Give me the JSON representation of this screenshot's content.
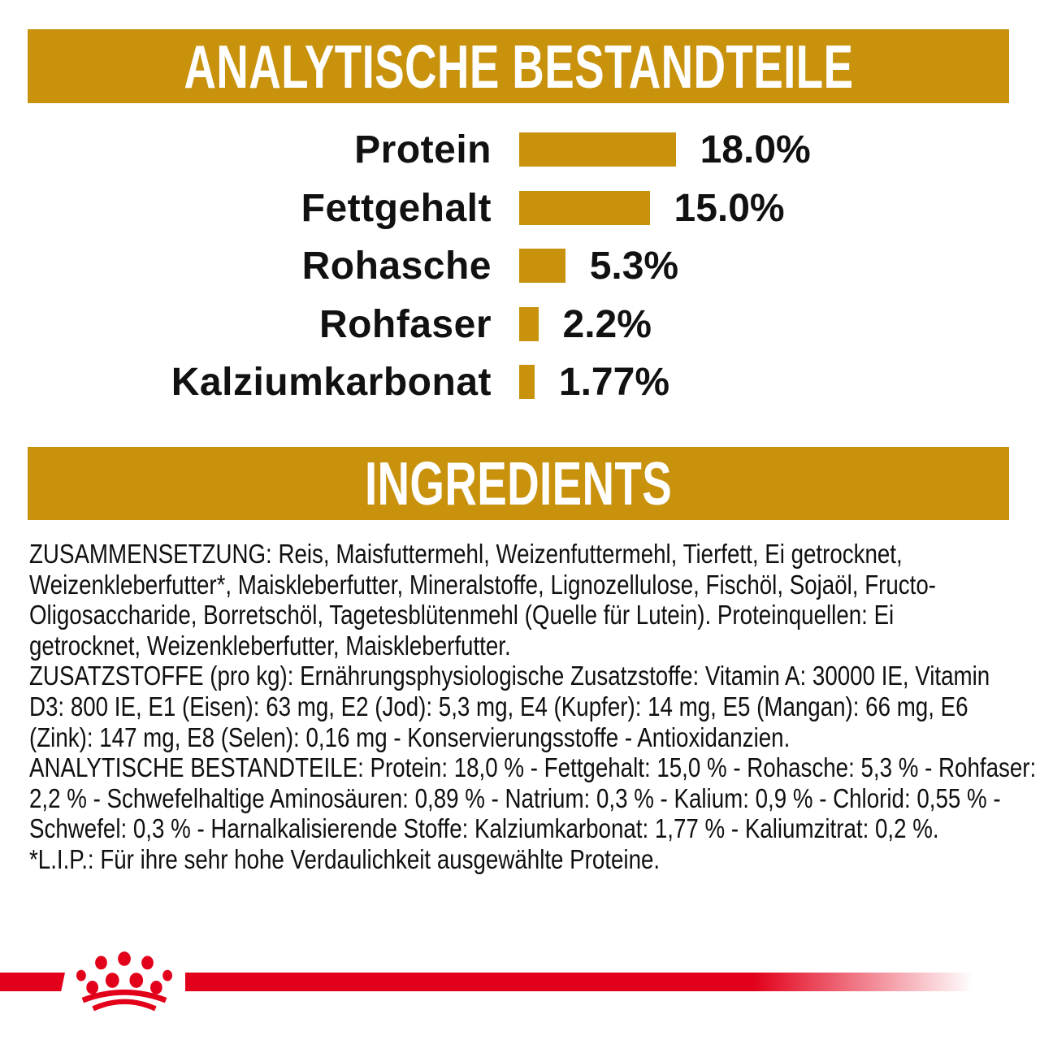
{
  "colors": {
    "gold": "#C8920C",
    "red": "#E2001A",
    "text": "#101010",
    "banner_text": "#FFFFFF",
    "background": "#FFFFFF"
  },
  "banners": {
    "analytical": "ANALYTISCHE BESTANDTEILE",
    "ingredients": "INGREDIENTS"
  },
  "chart_data": {
    "type": "bar",
    "orientation": "horizontal",
    "title": "ANALYTISCHE BESTANDTEILE",
    "categories": [
      "Protein",
      "Fettgehalt",
      "Rohasche",
      "Rohfaser",
      "Kalziumkarbonat"
    ],
    "values": [
      18.0,
      15.0,
      5.3,
      2.2,
      1.77
    ],
    "value_labels": [
      "18.0%",
      "15.0%",
      "5.3%",
      "2.2%",
      "1.77%"
    ],
    "unit": "%",
    "bar_color": "#C8920C",
    "xlim": [
      0,
      20
    ],
    "grid": false,
    "legend": "none"
  },
  "ingredients_text": {
    "paragraphs": [
      {
        "name": "zusammensetzung",
        "lines": [
          "ZUSAMMENSETZUNG: Reis, Maisfuttermehl, Weizenfuttermehl, Tierfett, Ei getrocknet,",
          "Weizenkleberfutter*, Maiskleberfutter, Mineralstoffe, Lignozellulose, Fischöl, Sojaöl, Fructo-",
          "Oligosaccharide, Borretschöl, Tagetesblütenmehl (Quelle für Lutein). Proteinquellen: Ei",
          "getrocknet, Weizenkleberfutter, Maiskleberfutter."
        ]
      },
      {
        "name": "zusatzstoffe",
        "lines": [
          "ZUSATZSTOFFE (pro kg): Ernährungsphysiologische Zusatzstoffe: Vitamin A: 30000 IE, Vitamin",
          "D3: 800 IE, E1 (Eisen): 63 mg, E2 (Jod): 5,3 mg, E4 (Kupfer): 14 mg, E5 (Mangan): 66 mg, E6",
          "(Zink): 147 mg, E8 (Selen): 0,16 mg - Konservierungsstoffe - Antioxidanzien."
        ]
      },
      {
        "name": "analytische-bestandteile",
        "lines": [
          "ANALYTISCHE BESTANDTEILE: Protein: 18,0 % - Fettgehalt: 15,0 % - Rohasche: 5,3 % - Rohfaser:",
          "2,2 % - Schwefelhaltige Aminosäuren: 0,89 % - Natrium: 0,3 % - Kalium: 0,9 % - Chlorid: 0,55 % -",
          "Schwefel: 0,3 % - Harnalkalisierende Stoffe: Kalziumkarbonat: 1,77 % - Kaliumzitrat: 0,2 %."
        ]
      },
      {
        "name": "lip-note",
        "lines": [
          "*L.I.P.: Für ihre sehr hohe Verdaulichkeit ausgewählte Proteine."
        ]
      }
    ]
  },
  "footer": {
    "brand_icon": "royal-canin-crown-icon"
  }
}
